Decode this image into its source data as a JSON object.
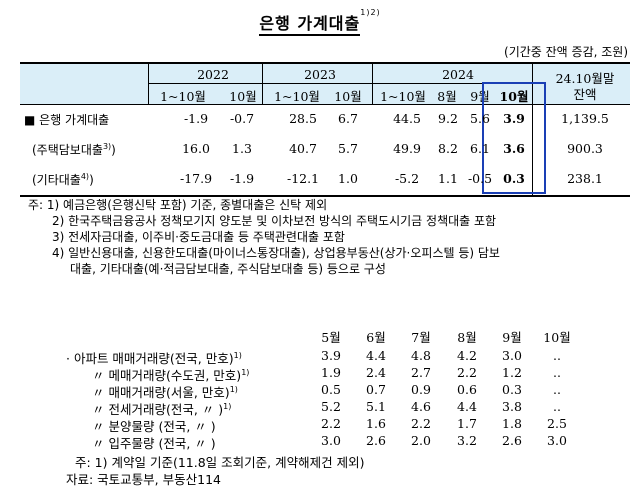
{
  "title": "은행 가계대출",
  "title_sup": "1)2)",
  "unit": "(기간중 잔액 증감, 조원)",
  "table1": {
    "year_headers": [
      "2022",
      "2023",
      "2024"
    ],
    "last_col_header": [
      "24.10월말",
      "잔액"
    ],
    "sub_headers": [
      "1~10월",
      "10월",
      "1~10월",
      "10월",
      "1~10월",
      "8월",
      "9월",
      "10월"
    ],
    "rows": [
      {
        "label": "■ 은행 가계대출",
        "sup": "",
        "values": [
          "-1.9",
          "-0.7",
          "28.5",
          "6.7",
          "44.5",
          "9.2",
          "5.6",
          "3.9",
          "1,139.5"
        ]
      },
      {
        "label": "(주택담보대출",
        "sup": "3)",
        "label_end": ")",
        "values": [
          "16.0",
          "1.3",
          "40.7",
          "5.7",
          "49.9",
          "8.2",
          "6.1",
          "3.6",
          "900.3"
        ]
      },
      {
        "label": "(기타대출",
        "sup": "4)",
        "label_end": ")",
        "values": [
          "-17.9",
          "-1.9",
          "-12.1",
          "1.0",
          "-5.2",
          "1.1",
          "-0.5",
          "0.3",
          "238.1"
        ]
      }
    ]
  },
  "notes1": [
    "주: 1) 예금은행(은행신탁 포함) 기준, 종별대출은 신탁 제외",
    "2) 한국주택금융공사 정책모기지 양도분 및 이차보전 방식의 주택도시기금 정책대출 포함",
    "3) 전세자금대출, 이주비·중도금대출 등 주택관련대출 포함",
    "4) 일반신용대출, 신용한도대출(마이너스통장대출), 상업용부동산(상가·오피스텔 등) 담보",
    "대출, 기타대출(예·적금담보대출, 주식담보대출 등) 등으로 구성"
  ],
  "table2": {
    "months": [
      "5월",
      "6월",
      "7월",
      "8월",
      "9월",
      "10월"
    ],
    "rows": [
      {
        "label": "· 아파트 매매거래량(전국, 만호)",
        "sup": "1)",
        "values": [
          "3.9",
          "4.4",
          "4.8",
          "4.2",
          "3.0",
          ".."
        ]
      },
      {
        "label": "〃   메매거래량(수도권, 만호)",
        "sup": "1)",
        "values": [
          "1.9",
          "2.4",
          "2.7",
          "2.2",
          "1.2",
          ".."
        ]
      },
      {
        "label": "〃   매매거래량(서울, 만호)",
        "sup": "1)",
        "values": [
          "0.5",
          "0.7",
          "0.9",
          "0.6",
          "0.3",
          ".."
        ]
      },
      {
        "label": "〃   전세거래량(전국,  〃 )",
        "sup": "1)",
        "values": [
          "5.2",
          "5.1",
          "4.6",
          "4.4",
          "3.8",
          ".."
        ]
      },
      {
        "label": "〃   분양물량 (전국,    〃 )",
        "sup": "",
        "values": [
          "2.2",
          "1.6",
          "2.2",
          "1.7",
          "1.8",
          "2.5"
        ]
      },
      {
        "label": "〃   입주물량 (전국,    〃 )",
        "sup": "",
        "values": [
          "3.0",
          "2.6",
          "2.0",
          "3.2",
          "2.6",
          "3.0"
        ]
      }
    ],
    "note": "주: 1) 계약일 기준(11.8일 조회기준, 계약해제건 제외)",
    "source": "자료: 국토교통부, 부동산114"
  }
}
